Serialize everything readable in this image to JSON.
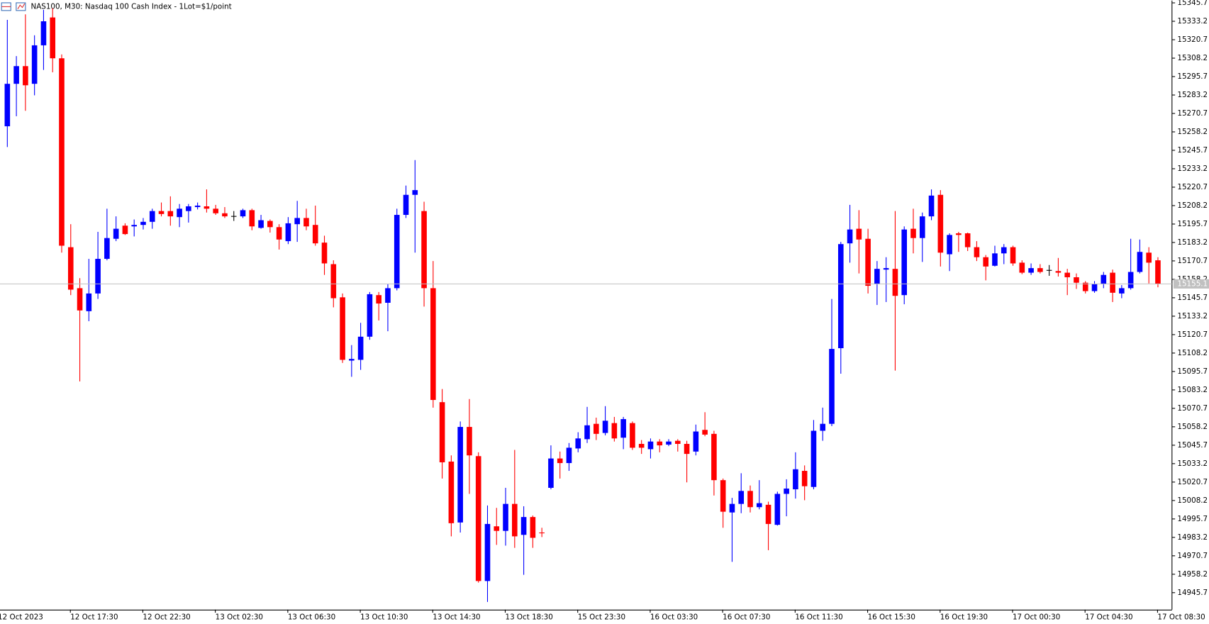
{
  "chart_data": {
    "type": "candlestick",
    "title": "NAS100, M30:  Nasdaq 100 Cash Index - 1Lot=$1/point",
    "categories": [
      "12 Oct 2023",
      null,
      null,
      null,
      null,
      null,
      null,
      null,
      "12 Oct 17:30",
      null,
      null,
      null,
      null,
      null,
      null,
      null,
      "12 Oct 22:30",
      null,
      null,
      null,
      null,
      null,
      null,
      null,
      "13 Oct 02:30",
      null,
      null,
      null,
      null,
      null,
      null,
      null,
      "13 Oct 06:30",
      null,
      null,
      null,
      null,
      null,
      null,
      null,
      "13 Oct 10:30",
      null,
      null,
      null,
      null,
      null,
      null,
      null,
      "13 Oct 14:30",
      null,
      null,
      null,
      null,
      null,
      null,
      null,
      "13 Oct 18:30",
      null,
      null,
      null,
      null,
      null,
      null,
      null,
      "15 Oct 23:30",
      null,
      null,
      null,
      null,
      null,
      null,
      null,
      "16 Oct 03:30",
      null,
      null,
      null,
      null,
      null,
      null,
      null,
      "16 Oct 07:30",
      null,
      null,
      null,
      null,
      null,
      null,
      null,
      "16 Oct 11:30",
      null,
      null,
      null,
      null,
      null,
      null,
      null,
      "16 Oct 15:30",
      null,
      null,
      null,
      null,
      null,
      null,
      null,
      "16 Oct 19:30",
      null,
      null,
      null,
      null,
      null,
      null,
      null,
      "17 Oct 00:30",
      null,
      null,
      null,
      null,
      null,
      null,
      null,
      "17 Oct 04:30",
      null,
      null,
      null,
      null,
      null,
      null,
      null,
      "17 Oct 08:30"
    ],
    "open": [
      null,
      15262.0,
      15290.8,
      15302.8,
      15290.8,
      15316.9,
      15335.8,
      15308.1,
      15180.0,
      15152.2,
      15136.6,
      15148.6,
      15172.1,
      15185.7,
      15194.6,
      15194.1,
      15195.1,
      15197.2,
      15204.5,
      15204.5,
      15200.4,
      15204.5,
      15207.2,
      15207.7,
      15206.1,
      15203.0,
      15200.9,
      15200.9,
      15205.1,
      15193.1,
      15197.8,
      15193.6,
      15184.1,
      15195.6,
      15199.8,
      15195.1,
      15183.1,
      15168.5,
      15146.0,
      15103.1,
      15103.6,
      15119.3,
      15147.5,
      15142.3,
      15152.2,
      15201.9,
      15215.5,
      15204.5,
      15152.2,
      15074.9,
      15034.6,
      14993.3,
      15058.1,
      15038.3,
      14953.6,
      14990.7,
      14987.6,
      15005.9,
      14984.9,
      14997.0,
      14986.5,
      15016.8,
      15036.7,
      15033.6,
      15043.5,
      15049.8,
      15060.2,
      15054.0,
      15060.7,
      15050.8,
      15060.7,
      15046.6,
      15043.0,
      15048.2,
      15046.1,
      15048.7,
      15046.6,
      15041.4,
      15056.1,
      15053.4,
      15022.0,
      15000.1,
      15005.9,
      15014.7,
      15003.7,
      15005.3,
      14991.7,
      15012.7,
      15015.8,
      15028.3,
      15017.4,
      15055.5,
      15060.2,
      15111.5,
      15182.6,
      15192.5,
      15185.7,
      15154.9,
      15164.8,
      15165.3,
      15147.5,
      15192.5,
      15186.2,
      15200.9,
      15215.5,
      15175.2,
      15189.4,
      15189.4,
      15180.0,
      15173.2,
      15167.4,
      15175.8,
      15180.0,
      15169.5,
      15162.7,
      15165.8,
      15164.3,
      15163.8,
      15162.7,
      15159.6,
      15155.9,
      15150.2,
      15154.9,
      15162.7,
      15148.6,
      15152.2,
      15163.2,
      15176.3,
      15171.1
    ],
    "high": [
      null,
      15334.2,
      15309.6,
      15337.9,
      15323.7,
      15341.0,
      15342.0,
      15310.7,
      15195.6,
      15159.0,
      15172.1,
      15190.4,
      15206.1,
      15200.9,
      15196.2,
      15198.8,
      15199.8,
      15206.1,
      15210.3,
      15214.5,
      15209.3,
      15209.3,
      15210.3,
      15219.2,
      15208.7,
      15207.2,
      15204.5,
      15206.1,
      15206.1,
      15201.9,
      15198.8,
      15195.6,
      15200.4,
      15211.4,
      15206.1,
      15208.2,
      15187.8,
      15171.1,
      15148.6,
      15113.6,
      15128.7,
      15149.6,
      15149.6,
      15154.9,
      15206.1,
      15221.8,
      15239.1,
      15210.8,
      15170.6,
      15083.8,
      15038.8,
      15061.8,
      15077.0,
      15040.9,
      15004.8,
      15003.2,
      15016.8,
      15042.5,
      15004.3,
      14998.0,
      14989.7,
      15045.6,
      15041.4,
      15047.2,
      15054.5,
      15071.7,
      15064.4,
      15072.2,
      15064.9,
      15064.9,
      15061.8,
      15049.2,
      15050.3,
      15049.8,
      15049.8,
      15049.8,
      15048.7,
      15059.7,
      15068.1,
      15055.5,
      15023.1,
      15010.0,
      15026.7,
      15018.4,
      15022.0,
      15007.4,
      15014.2,
      15022.6,
      15040.9,
      15032.0,
      15062.8,
      15071.2,
      15144.9,
      15183.6,
      15208.7,
      15205.1,
      15192.5,
      15170.6,
      15173.2,
      15204.5,
      15194.1,
      15206.1,
      15203.5,
      15219.2,
      15218.7,
      15189.4,
      15190.4,
      15189.9,
      15184.1,
      15174.7,
      15181.0,
      15182.1,
      15181.0,
      15171.1,
      15169.0,
      15168.5,
      15167.9,
      15172.7,
      15165.3,
      15162.2,
      15157.0,
      15157.0,
      15163.2,
      15164.8,
      15154.3,
      15185.7,
      15185.2,
      15180.0,
      15173.2
    ],
    "low": [
      null,
      15247.9,
      15268.8,
      15272.5,
      15283.0,
      15300.2,
      15298.6,
      15176.3,
      15147.5,
      15089.0,
      15129.8,
      15144.9,
      15171.1,
      15184.1,
      15188.3,
      15187.3,
      15192.0,
      15192.5,
      15200.9,
      15194.6,
      15193.6,
      15196.7,
      15205.6,
      15203.5,
      15201.9,
      15199.8,
      15197.8,
      15199.8,
      15191.5,
      15192.5,
      15189.9,
      15178.4,
      15182.1,
      15183.6,
      15191.5,
      15181.0,
      15161.2,
      15139.2,
      15101.5,
      15092.1,
      15096.8,
      15117.2,
      15130.3,
      15123.0,
      15150.7,
      15199.8,
      15176.3,
      15139.7,
      15071.2,
      15023.1,
      14983.9,
      14986.5,
      15012.7,
      14952.5,
      14939.4,
      14978.1,
      14977.6,
      14976.1,
      14957.8,
      14976.1,
      14983.4,
      15015.8,
      15023.1,
      15028.3,
      15040.9,
      15047.2,
      15049.2,
      15052.4,
      15048.2,
      15043.0,
      15042.5,
      15039.8,
      15036.7,
      15040.9,
      15045.1,
      15041.4,
      15020.5,
      15038.8,
      15051.8,
      15011.6,
      14989.7,
      14966.6,
      14999.6,
      15000.1,
      15002.2,
      14974.5,
      14991.2,
      14997.5,
      15009.5,
      15008.4,
      15015.8,
      15048.7,
      15058.6,
      15094.2,
      15169.5,
      15162.2,
      15148.6,
      15140.8,
      15142.8,
      15096.3,
      15141.3,
      15175.8,
      15170.0,
      15198.3,
      15166.9,
      15163.8,
      15176.8,
      15177.4,
      15170.6,
      15157.5,
      15166.9,
      15168.5,
      15167.4,
      15161.7,
      15161.2,
      15162.2,
      15160.6,
      15160.1,
      15147.5,
      15151.7,
      15148.6,
      15149.1,
      15152.2,
      15142.8,
      15145.4,
      15151.2,
      15162.2,
      15155.4,
      15152.8
    ],
    "close": [
      null,
      15290.8,
      15302.8,
      15289.8,
      15316.9,
      15333.2,
      15308.1,
      15181.0,
      15151.2,
      15137.1,
      15148.6,
      15172.1,
      15186.2,
      15192.5,
      15188.9,
      15195.1,
      15197.2,
      15204.5,
      15202.5,
      15200.9,
      15206.1,
      15207.7,
      15208.2,
      15206.1,
      15203.0,
      15200.9,
      15200.9,
      15205.1,
      15194.1,
      15198.3,
      15193.6,
      15185.2,
      15196.2,
      15199.8,
      15194.1,
      15182.6,
      15169.0,
      15145.4,
      15103.6,
      15104.2,
      15119.3,
      15148.1,
      15141.8,
      15152.2,
      15201.9,
      15215.5,
      15218.7,
      15152.2,
      15076.4,
      15034.1,
      14992.8,
      15058.1,
      15038.8,
      14953.6,
      14992.3,
      14987.6,
      15005.9,
      14983.9,
      14997.0,
      14982.9,
      14986.0,
      15036.7,
      15033.6,
      15044.0,
      15050.3,
      15059.2,
      15053.4,
      15062.3,
      15050.3,
      15063.4,
      15044.0,
      15044.0,
      15048.2,
      15045.6,
      15048.2,
      15046.6,
      15039.8,
      15055.0,
      15052.9,
      15022.0,
      15000.6,
      15005.9,
      15014.7,
      15003.7,
      15006.4,
      14992.3,
      15012.7,
      15016.3,
      15029.4,
      15017.9,
      15055.5,
      15060.2,
      15111.0,
      15182.1,
      15192.0,
      15185.2,
      15153.8,
      15165.3,
      15165.8,
      15147.0,
      15192.0,
      15186.2,
      15200.9,
      15215.0,
      15176.3,
      15188.3,
      15188.3,
      15180.0,
      15173.2,
      15166.9,
      15175.8,
      15180.0,
      15169.0,
      15162.7,
      15165.8,
      15163.2,
      15164.3,
      15162.7,
      15159.6,
      15155.9,
      15150.2,
      15154.9,
      15161.2,
      15149.1,
      15152.2,
      15163.2,
      15176.8,
      15169.5,
      15155.1
    ],
    "ylim": [
      14934.2,
      15347.3
    ],
    "yticks": [
      15345.7,
      15333.2,
      15320.7,
      15308.2,
      15295.7,
      15283.2,
      15270.7,
      15258.2,
      15245.7,
      15233.2,
      15220.7,
      15208.2,
      15195.7,
      15183.2,
      15170.7,
      15158.2,
      15145.7,
      15133.2,
      15120.7,
      15108.2,
      15095.7,
      15083.2,
      15070.7,
      15058.2,
      15045.7,
      15033.2,
      15020.7,
      15008.2,
      14995.7,
      14983.2,
      14970.7,
      14958.2,
      14945.7
    ],
    "current_price": 15155.1,
    "up_color": "#0000ff",
    "down_color": "#ff0000",
    "doji_color": "#000000",
    "price_line_color": "#c0c0c0"
  }
}
